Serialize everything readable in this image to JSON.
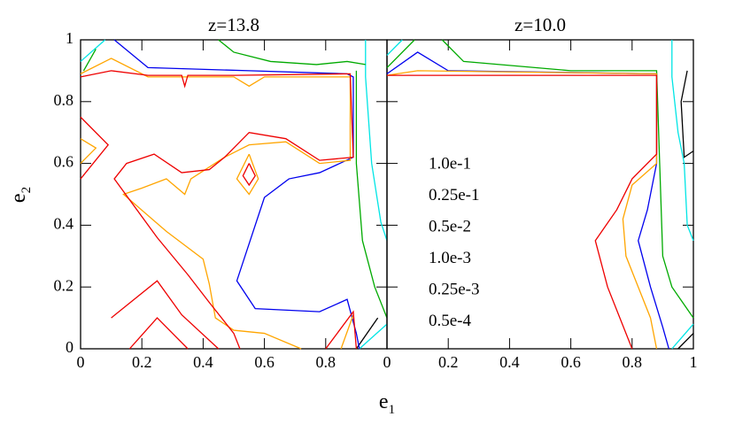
{
  "chart_data": [
    {
      "type": "contour",
      "title": "z=13.8",
      "xlabel": [
        "e",
        "1"
      ],
      "ylabel": [
        "e",
        "2"
      ],
      "xlim": [
        0,
        1
      ],
      "ylim": [
        0,
        1
      ],
      "xticks": [
        0,
        0.2,
        0.4,
        0.6,
        0.8
      ],
      "yticks": [
        0,
        0.2,
        0.4,
        0.6,
        0.8,
        1
      ],
      "series": [
        {
          "color": "#000000",
          "lines": [
            {
              "x": [
                0.9,
                0.97
              ],
              "y": [
                0,
                0.1
              ]
            }
          ]
        },
        {
          "color": "#00e5e5",
          "lines": [
            {
              "x": [
                0,
                0.08
              ],
              "y": [
                0.93,
                1
              ]
            },
            {
              "x": [
                0.93,
                0.93,
                0.95,
                0.98,
                1
              ],
              "y": [
                1,
                0.88,
                0.6,
                0.41,
                0.35
              ]
            },
            {
              "x": [
                0.91,
                1
              ],
              "y": [
                0,
                0.08
              ]
            }
          ]
        },
        {
          "color": "#00aa00",
          "lines": [
            {
              "x": [
                0.01,
                0.05
              ],
              "y": [
                0.9,
                0.97
              ]
            },
            {
              "x": [
                0.45,
                0.5,
                0.62,
                0.77,
                0.87,
                0.93
              ],
              "y": [
                1,
                0.96,
                0.93,
                0.92,
                0.93,
                0.92
              ]
            },
            {
              "x": [
                0.9,
                0.9,
                0.92,
                0.96,
                1
              ],
              "y": [
                0.9,
                0.6,
                0.35,
                0.2,
                0.1
              ]
            }
          ]
        },
        {
          "color": "#0000ee",
          "lines": [
            {
              "x": [
                0.11,
                0.22,
                0.55,
                0.87,
                0.89,
                0.89,
                0.78,
                0.68,
                0.6,
                0.51,
                0.57,
                0.78,
                0.87,
                0.9,
                0.91
              ],
              "y": [
                1,
                0.91,
                0.9,
                0.89,
                0.88,
                0.62,
                0.57,
                0.55,
                0.49,
                0.22,
                0.13,
                0.12,
                0.16,
                0.05,
                0
              ]
            }
          ]
        },
        {
          "color": "#ffa500",
          "lines": [
            {
              "x": [
                0,
                0.1,
                0.22,
                0.5,
                0.55,
                0.6,
                0.88,
                0.88,
                0.78,
                0.67,
                0.55,
                0.47,
                0.36,
                0.34,
                0.28,
                0.2,
                0.14,
                0.28,
                0.4,
                0.42,
                0.44,
                0.5,
                0.6,
                0.72
              ],
              "y": [
                0.89,
                0.94,
                0.88,
                0.88,
                0.85,
                0.88,
                0.88,
                0.61,
                0.6,
                0.67,
                0.66,
                0.62,
                0.55,
                0.5,
                0.55,
                0.52,
                0.5,
                0.38,
                0.29,
                0.21,
                0.1,
                0.06,
                0.05,
                0
              ]
            },
            {
              "x": [
                0.55,
                0.51,
                0.55,
                0.58,
                0.55
              ],
              "y": [
                0.63,
                0.55,
                0.5,
                0.55,
                0.63
              ]
            },
            {
              "x": [
                0,
                0.05,
                0
              ],
              "y": [
                0.68,
                0.65,
                0.6
              ]
            },
            {
              "x": [
                0.85,
                0.89
              ],
              "y": [
                0,
                0.11
              ]
            }
          ]
        },
        {
          "color": "#ee0000",
          "lines": [
            {
              "x": [
                0,
                0.1,
                0.22,
                0.33,
                0.34,
                0.35,
                0.5,
                0.88,
                0.89,
                0.78,
                0.67,
                0.55,
                0.47,
                0.42,
                0.33,
                0.24,
                0.15,
                0.11,
                0.25,
                0.35,
                0.42,
                0.5,
                0.52
              ],
              "y": [
                0.88,
                0.9,
                0.885,
                0.885,
                0.85,
                0.885,
                0.885,
                0.89,
                0.62,
                0.61,
                0.68,
                0.7,
                0.62,
                0.58,
                0.57,
                0.63,
                0.6,
                0.55,
                0.36,
                0.24,
                0.15,
                0.05,
                0
              ]
            },
            {
              "x": [
                0.55,
                0.53,
                0.55,
                0.57,
                0.55
              ],
              "y": [
                0.6,
                0.56,
                0.53,
                0.56,
                0.6
              ]
            },
            {
              "x": [
                0,
                0.09,
                0
              ],
              "y": [
                0.75,
                0.66,
                0.55
              ]
            },
            {
              "x": [
                0.1,
                0.25,
                0.33,
                0.45
              ],
              "y": [
                0.1,
                0.22,
                0.11,
                0
              ]
            },
            {
              "x": [
                0.16,
                0.25,
                0.35
              ],
              "y": [
                0,
                0.1,
                0
              ]
            },
            {
              "x": [
                0.8,
                0.89,
                0.9
              ],
              "y": [
                0,
                0.12,
                0
              ]
            }
          ]
        }
      ]
    },
    {
      "type": "contour",
      "title": "z=10.0",
      "xlim": [
        0,
        1
      ],
      "ylim": [
        0,
        1
      ],
      "xticks": [
        0,
        0.2,
        0.4,
        0.6,
        0.8,
        1
      ],
      "legend": true,
      "series": [
        {
          "name": "1.0e-1",
          "color": "#000000",
          "lines": [
            {
              "x": [
                0.98,
                0.96,
                0.97,
                1
              ],
              "y": [
                0.9,
                0.8,
                0.62,
                0.64
              ]
            },
            {
              "x": [
                0.95,
                1
              ],
              "y": [
                0,
                0.05
              ]
            }
          ]
        },
        {
          "name": "0.25e-1",
          "color": "#00e5e5",
          "lines": [
            {
              "x": [
                0.93,
                0.93,
                0.95,
                0.97,
                0.98,
                1
              ],
              "y": [
                1,
                0.88,
                0.7,
                0.6,
                0.4,
                0.35
              ]
            },
            {
              "x": [
                0.93,
                1
              ],
              "y": [
                0,
                0.08
              ]
            },
            {
              "x": [
                0,
                0.05
              ],
              "y": [
                0.95,
                1
              ]
            }
          ]
        },
        {
          "name": "0.5e-2",
          "color": "#00aa00",
          "lines": [
            {
              "x": [
                0.18,
                0.25,
                0.6,
                0.88,
                0.89,
                0.9,
                0.93,
                1
              ],
              "y": [
                1,
                0.93,
                0.9,
                0.9,
                0.6,
                0.3,
                0.2,
                0.1
              ]
            },
            {
              "x": [
                0,
                0.09
              ],
              "y": [
                0.91,
                1
              ]
            }
          ]
        },
        {
          "name": "1.0e-3",
          "color": "#0000ee",
          "lines": [
            {
              "x": [
                0,
                0.1,
                0.2,
                0.88,
                0.88,
                0.85,
                0.82,
                0.86,
                0.9,
                0.92
              ],
              "y": [
                0.89,
                0.96,
                0.9,
                0.89,
                0.6,
                0.45,
                0.35,
                0.2,
                0.07,
                0
              ]
            }
          ]
        },
        {
          "name": "0.25e-3",
          "color": "#ffa500",
          "lines": [
            {
              "x": [
                0,
                0.1,
                0.88,
                0.88,
                0.8,
                0.77,
                0.78,
                0.82,
                0.86,
                0.88
              ],
              "y": [
                0.885,
                0.9,
                0.89,
                0.6,
                0.53,
                0.42,
                0.3,
                0.2,
                0.1,
                0
              ]
            }
          ]
        },
        {
          "name": "0.5e-4",
          "color": "#ee0000",
          "lines": [
            {
              "x": [
                0,
                0.88,
                0.88,
                0.8,
                0.75,
                0.68,
                0.72,
                0.76,
                0.8
              ],
              "y": [
                0.885,
                0.885,
                0.63,
                0.55,
                0.45,
                0.35,
                0.2,
                0.1,
                0
              ]
            }
          ]
        }
      ]
    }
  ]
}
